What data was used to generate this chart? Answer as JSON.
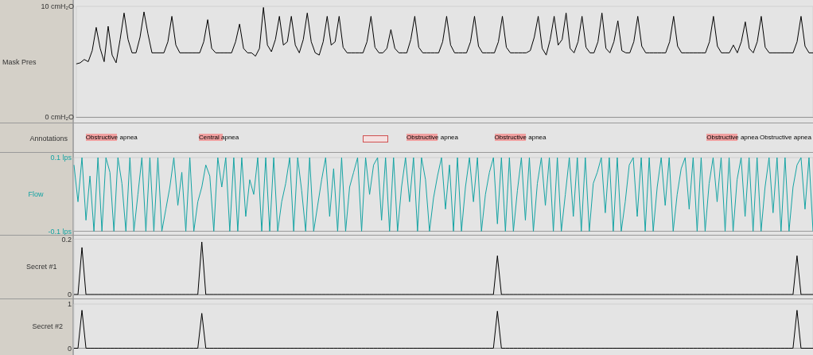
{
  "chart_data": [
    {
      "type": "line",
      "ylabel": "Mask Pres",
      "ylim": [
        0,
        10
      ],
      "yticks": [
        {
          "value": 10,
          "label": "10 cmH₂O"
        },
        {
          "value": 0,
          "label": "0 cmH₂O"
        }
      ],
      "grid": false,
      "tick_labels": "y",
      "categories": [
        null,
        null,
        null,
        null,
        null,
        null,
        null,
        null,
        null,
        null,
        null,
        null,
        null,
        null,
        null,
        null,
        null,
        null,
        null,
        null,
        null,
        null,
        null,
        null,
        null,
        null,
        null,
        null,
        null,
        null,
        null,
        null,
        null,
        null,
        null,
        null,
        null,
        null,
        null,
        null,
        null,
        null,
        null,
        null,
        null,
        null,
        null,
        null,
        null,
        null,
        null,
        null,
        null,
        null,
        null,
        null,
        null,
        null,
        null,
        null,
        null,
        null,
        null,
        null,
        null,
        null,
        null,
        null,
        null,
        null,
        null,
        null,
        null,
        null,
        null,
        null,
        null,
        null,
        null,
        null,
        null,
        null,
        null,
        null,
        null,
        null,
        null,
        null,
        null,
        null,
        null,
        null,
        null,
        null,
        null,
        null,
        null,
        null,
        null,
        null,
        null,
        null,
        null,
        null,
        null,
        null,
        null,
        null,
        null,
        null,
        null,
        null,
        null,
        null,
        null,
        null,
        null,
        null,
        null,
        null,
        null,
        null,
        null,
        null,
        null,
        null,
        null,
        null,
        null,
        null,
        null,
        null,
        null,
        null,
        null,
        null,
        null,
        null,
        null,
        null,
        null,
        null,
        null,
        null,
        null,
        null,
        null,
        null,
        null,
        null,
        null,
        null,
        null,
        null,
        null,
        null,
        null,
        null,
        null,
        null,
        null,
        null,
        null,
        null,
        null,
        null,
        null,
        null,
        null,
        null,
        null,
        null,
        null,
        null,
        null,
        null,
        null,
        null,
        null,
        null,
        null,
        null,
        null,
        null,
        null,
        null
      ],
      "series": [
        {
          "color": "#000000",
          "values": [
            4.8,
            4.9,
            5.2,
            5.0,
            6.0,
            8.1,
            6.2,
            5.0,
            8.2,
            5.6,
            4.9,
            7.0,
            9.4,
            7.0,
            5.8,
            5.8,
            7.2,
            9.5,
            7.5,
            5.8,
            5.8,
            5.8,
            5.8,
            6.8,
            9.1,
            6.5,
            5.8,
            5.8,
            5.8,
            5.8,
            5.8,
            5.8,
            6.8,
            8.8,
            6.2,
            5.8,
            5.8,
            5.8,
            5.8,
            5.8,
            6.8,
            8.4,
            6.2,
            5.8,
            5.8,
            5.5,
            6.2,
            9.9,
            6.5,
            5.9,
            7.0,
            9.1,
            6.5,
            6.8,
            9.1,
            6.5,
            5.8,
            7.0,
            9.4,
            6.8,
            5.8,
            5.6,
            6.8,
            9.1,
            6.5,
            6.8,
            9.1,
            6.3,
            5.8,
            5.8,
            5.8,
            5.8,
            5.8,
            6.8,
            9.1,
            6.3,
            5.8,
            5.8,
            6.2,
            7.9,
            6.2,
            5.8,
            5.8,
            5.8,
            7.0,
            9.1,
            6.3,
            5.8,
            5.8,
            5.8,
            5.8,
            5.8,
            6.8,
            9.1,
            6.5,
            5.8,
            5.8,
            5.8,
            5.8,
            6.8,
            9.1,
            6.4,
            5.8,
            5.8,
            5.8,
            5.8,
            6.8,
            9.1,
            6.3,
            5.8,
            5.8,
            5.8,
            5.8,
            5.8,
            6.0,
            7.2,
            9.1,
            6.2,
            5.6,
            7.0,
            9.1,
            6.5,
            7.0,
            9.4,
            6.2,
            5.8,
            6.8,
            9.1,
            6.3,
            5.8,
            5.8,
            6.8,
            9.4,
            6.2,
            5.8,
            6.8,
            8.7,
            6.0,
            5.8,
            5.8,
            6.8,
            9.1,
            6.4,
            5.8,
            5.8,
            5.8,
            5.8,
            5.8,
            5.8,
            6.8,
            9.1,
            6.4,
            5.8,
            5.8,
            5.8,
            5.8,
            5.8,
            5.8,
            5.8,
            6.8,
            9.1,
            6.4,
            5.8,
            5.8,
            5.8,
            6.5,
            5.8,
            6.8,
            8.6,
            6.2,
            5.8,
            6.8,
            9.1,
            6.3,
            5.8,
            5.8,
            5.8,
            5.8,
            5.8,
            5.8,
            5.8,
            6.8,
            9.1,
            6.4,
            5.8,
            5.8
          ]
        }
      ]
    },
    {
      "type": "other",
      "ylabel": "Annotations",
      "annotations": [
        "Obstructive apnea",
        "Central apnea",
        "Obstructive apnea",
        "Obstructive apnea",
        "Obstructive apnea",
        "Obstructive apnea"
      ]
    },
    {
      "type": "line",
      "ylabel": "Flow",
      "ylim": [
        -0.1,
        0.1
      ],
      "yticks": [
        {
          "value": 0.1,
          "label": "0.1 lps"
        },
        {
          "value": -0.1,
          "label": "-0.1 lps"
        }
      ],
      "grid": false,
      "tick_labels": "y",
      "categories": [
        null,
        null,
        null,
        null,
        null,
        null,
        null,
        null,
        null,
        null,
        null,
        null,
        null,
        null,
        null,
        null,
        null,
        null,
        null,
        null,
        null,
        null,
        null,
        null,
        null,
        null,
        null,
        null,
        null,
        null,
        null,
        null,
        null,
        null,
        null,
        null,
        null,
        null,
        null,
        null,
        null,
        null,
        null,
        null,
        null,
        null,
        null,
        null,
        null,
        null,
        null,
        null,
        null,
        null,
        null,
        null,
        null,
        null,
        null,
        null,
        null,
        null,
        null,
        null,
        null,
        null,
        null,
        null,
        null,
        null,
        null,
        null,
        null,
        null,
        null,
        null,
        null,
        null,
        null,
        null,
        null,
        null,
        null,
        null,
        null,
        null,
        null,
        null,
        null,
        null,
        null,
        null,
        null,
        null,
        null,
        null,
        null,
        null,
        null,
        null,
        null,
        null,
        null,
        null,
        null,
        null,
        null,
        null,
        null,
        null,
        null,
        null,
        null,
        null,
        null,
        null,
        null,
        null,
        null,
        null,
        null,
        null,
        null,
        null,
        null,
        null,
        null,
        null,
        null,
        null,
        null,
        null,
        null,
        null,
        null,
        null,
        null,
        null,
        null,
        null,
        null,
        null,
        null,
        null,
        null,
        null,
        null,
        null,
        null,
        null,
        null,
        null,
        null,
        null,
        null,
        null,
        null,
        null,
        null,
        null,
        null,
        null,
        null,
        null,
        null,
        null,
        null,
        null,
        null,
        null,
        null,
        null,
        null,
        null,
        null,
        null,
        null,
        null,
        null,
        null,
        null,
        null,
        null,
        null,
        null,
        null
      ],
      "series": [
        {
          "color": "#14a3a3",
          "values": [
            0.08,
            -0.02,
            0.1,
            -0.07,
            0.05,
            -0.1,
            0.1,
            -0.1,
            0.1,
            0.06,
            -0.1,
            0.1,
            0.03,
            -0.1,
            0.1,
            -0.1,
            0.0,
            0.1,
            -0.1,
            0.1,
            -0.1,
            0.1,
            -0.1,
            -0.04,
            0.02,
            0.1,
            -0.03,
            0.06,
            -0.1,
            0.1,
            -0.1,
            -0.02,
            0.02,
            0.08,
            0.05,
            -0.1,
            0.1,
            0.02,
            0.1,
            -0.1,
            0.1,
            -0.1,
            0.1,
            -0.06,
            0.04,
            0.0,
            0.1,
            -0.1,
            0.1,
            -0.1,
            0.1,
            -0.1,
            -0.02,
            0.03,
            0.1,
            -0.1,
            0.1,
            0.01,
            -0.1,
            0.1,
            -0.1,
            -0.03,
            0.04,
            0.1,
            -0.06,
            0.07,
            -0.1,
            0.1,
            -0.1,
            0.02,
            0.06,
            0.1,
            -0.1,
            0.1,
            0.0,
            0.08,
            0.1,
            -0.07,
            0.1,
            -0.1,
            0.1,
            -0.1,
            0.02,
            0.1,
            -0.02,
            0.1,
            -0.1,
            0.1,
            0.04,
            -0.1,
            -0.01,
            0.05,
            0.1,
            -0.04,
            0.08,
            -0.1,
            0.1,
            -0.1,
            0.02,
            0.1,
            -0.02,
            0.1,
            -0.1,
            0.0,
            0.06,
            0.1,
            -0.08,
            0.1,
            -0.1,
            0.1,
            -0.1,
            0.01,
            0.1,
            -0.07,
            0.1,
            -0.1,
            0.03,
            0.1,
            -0.03,
            0.1,
            -0.1,
            0.1,
            -0.1,
            0.0,
            0.1,
            -0.06,
            0.1,
            -0.1,
            0.1,
            -0.1,
            0.03,
            0.06,
            0.1,
            -0.05,
            0.1,
            -0.1,
            0.1,
            -0.1,
            -0.02,
            0.08,
            0.1,
            -0.06,
            0.1,
            -0.1,
            0.1,
            -0.1,
            0.02,
            0.1,
            -0.03,
            0.1,
            -0.1,
            0.0,
            0.07,
            0.1,
            -0.04,
            0.1,
            -0.1,
            0.1,
            -0.1,
            0.03,
            0.1,
            -0.02,
            0.1,
            -0.1,
            0.1,
            -0.1,
            0.04,
            0.1,
            -0.06,
            0.1,
            -0.1,
            0.1,
            -0.1,
            0.02,
            0.1,
            -0.05,
            0.1,
            -0.1,
            0.1,
            -0.1,
            0.02,
            0.08,
            0.1,
            -0.04,
            0.1,
            -0.1
          ]
        }
      ]
    },
    {
      "type": "line",
      "ylabel": "Secret #1",
      "ylim": [
        0,
        0.2
      ],
      "yticks": [
        0,
        0.2
      ],
      "grid": false,
      "tick_labels": "y",
      "categories": [
        null,
        null,
        null,
        null,
        null,
        null,
        null,
        null,
        null,
        null,
        null,
        null,
        null,
        null,
        null,
        null,
        null,
        null,
        null,
        null,
        null,
        null,
        null,
        null,
        null,
        null,
        null,
        null,
        null,
        null,
        null,
        null,
        null,
        null,
        null,
        null,
        null,
        null,
        null,
        null,
        null,
        null,
        null,
        null,
        null,
        null,
        null,
        null,
        null,
        null,
        null,
        null,
        null,
        null,
        null,
        null,
        null,
        null,
        null,
        null,
        null,
        null,
        null,
        null,
        null,
        null,
        null,
        null,
        null,
        null,
        null,
        null,
        null,
        null,
        null,
        null,
        null,
        null,
        null,
        null,
        null,
        null,
        null,
        null,
        null,
        null,
        null,
        null,
        null,
        null,
        null,
        null,
        null,
        null,
        null,
        null,
        null,
        null,
        null,
        null,
        null,
        null,
        null,
        null,
        null,
        null,
        null,
        null,
        null,
        null,
        null,
        null,
        null,
        null,
        null,
        null,
        null,
        null,
        null,
        null,
        null,
        null,
        null,
        null,
        null,
        null,
        null,
        null,
        null,
        null,
        null,
        null,
        null,
        null,
        null,
        null,
        null,
        null,
        null,
        null,
        null,
        null,
        null,
        null,
        null,
        null,
        null,
        null,
        null,
        null,
        null,
        null,
        null,
        null,
        null,
        null,
        null,
        null,
        null,
        null,
        null,
        null,
        null,
        null,
        null,
        null,
        null,
        null,
        null,
        null,
        null,
        null,
        null,
        null,
        null,
        null,
        null,
        null,
        null,
        null,
        null,
        null,
        null,
        null,
        null,
        null
      ],
      "series": [
        {
          "color": "#000000",
          "values": [
            0,
            0,
            0.17,
            0,
            0,
            0,
            0,
            0,
            0,
            0,
            0,
            0,
            0,
            0,
            0,
            0,
            0,
            0,
            0,
            0,
            0,
            0,
            0,
            0,
            0,
            0,
            0,
            0,
            0,
            0,
            0,
            0,
            0.19,
            0,
            0,
            0,
            0,
            0,
            0,
            0,
            0,
            0,
            0,
            0,
            0,
            0,
            0,
            0,
            0,
            0,
            0,
            0,
            0,
            0,
            0,
            0,
            0,
            0,
            0,
            0,
            0,
            0,
            0,
            0,
            0,
            0,
            0,
            0,
            0,
            0,
            0,
            0,
            0,
            0,
            0,
            0,
            0,
            0,
            0,
            0,
            0,
            0,
            0,
            0,
            0,
            0,
            0,
            0,
            0,
            0,
            0,
            0,
            0,
            0,
            0,
            0,
            0,
            0,
            0,
            0,
            0,
            0,
            0,
            0,
            0,
            0,
            0.14,
            0,
            0,
            0,
            0,
            0,
            0,
            0,
            0,
            0,
            0,
            0,
            0,
            0,
            0,
            0,
            0,
            0,
            0,
            0,
            0,
            0,
            0,
            0,
            0,
            0,
            0,
            0,
            0,
            0,
            0,
            0,
            0,
            0,
            0,
            0,
            0,
            0,
            0,
            0,
            0,
            0,
            0,
            0,
            0,
            0,
            0,
            0,
            0,
            0,
            0,
            0,
            0,
            0,
            0,
            0,
            0,
            0,
            0,
            0,
            0,
            0,
            0,
            0,
            0,
            0,
            0,
            0,
            0,
            0,
            0,
            0,
            0,
            0,
            0,
            0.14,
            0,
            0,
            0,
            0
          ]
        }
      ]
    },
    {
      "type": "line",
      "ylabel": "Secret #2",
      "ylim": [
        0,
        1
      ],
      "yticks": [
        0,
        1
      ],
      "grid": false,
      "tick_labels": "y",
      "categories": [
        null,
        null,
        null,
        null,
        null,
        null,
        null,
        null,
        null,
        null,
        null,
        null,
        null,
        null,
        null,
        null,
        null,
        null,
        null,
        null,
        null,
        null,
        null,
        null,
        null,
        null,
        null,
        null,
        null,
        null,
        null,
        null,
        null,
        null,
        null,
        null,
        null,
        null,
        null,
        null,
        null,
        null,
        null,
        null,
        null,
        null,
        null,
        null,
        null,
        null,
        null,
        null,
        null,
        null,
        null,
        null,
        null,
        null,
        null,
        null,
        null,
        null,
        null,
        null,
        null,
        null,
        null,
        null,
        null,
        null,
        null,
        null,
        null,
        null,
        null,
        null,
        null,
        null,
        null,
        null,
        null,
        null,
        null,
        null,
        null,
        null,
        null,
        null,
        null,
        null,
        null,
        null,
        null,
        null,
        null,
        null,
        null,
        null,
        null,
        null,
        null,
        null,
        null,
        null,
        null,
        null,
        null,
        null,
        null,
        null,
        null,
        null,
        null,
        null,
        null,
        null,
        null,
        null,
        null,
        null,
        null,
        null,
        null,
        null,
        null,
        null,
        null,
        null,
        null,
        null,
        null,
        null,
        null,
        null,
        null,
        null,
        null,
        null,
        null,
        null,
        null,
        null,
        null,
        null,
        null,
        null,
        null,
        null,
        null,
        null,
        null,
        null,
        null,
        null,
        null,
        null,
        null,
        null,
        null,
        null,
        null,
        null,
        null,
        null,
        null,
        null,
        null,
        null,
        null,
        null,
        null,
        null,
        null,
        null,
        null,
        null,
        null,
        null,
        null,
        null,
        null,
        null,
        null,
        null,
        null,
        null
      ],
      "series": [
        {
          "color": "#000000",
          "values": [
            0,
            0,
            0.86,
            0,
            0,
            0,
            0,
            0,
            0,
            0,
            0,
            0,
            0,
            0,
            0,
            0,
            0,
            0,
            0,
            0,
            0,
            0,
            0,
            0,
            0,
            0,
            0,
            0,
            0,
            0,
            0,
            0,
            0.79,
            0,
            0,
            0,
            0,
            0,
            0,
            0,
            0,
            0,
            0,
            0,
            0,
            0,
            0,
            0,
            0,
            0,
            0,
            0,
            0,
            0,
            0,
            0,
            0,
            0,
            0,
            0,
            0,
            0,
            0,
            0,
            0,
            0,
            0,
            0,
            0,
            0,
            0,
            0,
            0,
            0,
            0,
            0,
            0,
            0,
            0,
            0,
            0,
            0,
            0,
            0,
            0,
            0,
            0,
            0,
            0,
            0,
            0,
            0,
            0,
            0,
            0,
            0,
            0,
            0,
            0,
            0,
            0,
            0,
            0,
            0,
            0,
            0,
            0.84,
            0,
            0,
            0,
            0,
            0,
            0,
            0,
            0,
            0,
            0,
            0,
            0,
            0,
            0,
            0,
            0,
            0,
            0,
            0,
            0,
            0,
            0,
            0,
            0,
            0,
            0,
            0,
            0,
            0,
            0,
            0,
            0,
            0,
            0,
            0,
            0,
            0,
            0,
            0,
            0,
            0,
            0,
            0,
            0,
            0,
            0,
            0,
            0,
            0,
            0,
            0,
            0,
            0,
            0,
            0,
            0,
            0,
            0,
            0,
            0,
            0,
            0,
            0,
            0,
            0,
            0,
            0,
            0,
            0,
            0,
            0,
            0,
            0,
            0,
            0.86,
            0,
            0,
            0,
            0
          ]
        }
      ]
    }
  ]
}
